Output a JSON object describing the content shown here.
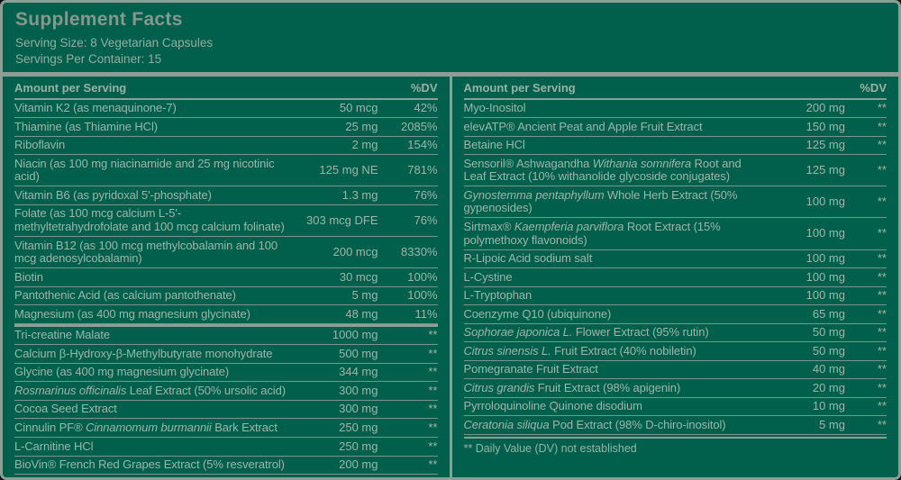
{
  "colors": {
    "panel_background": "#00604b",
    "rule": "#8c9f95",
    "text": "#a0b5aa",
    "title_text": "#86988e"
  },
  "header": {
    "title": "Supplement Facts",
    "serving_size": "Serving Size: 8 Vegetarian Capsules",
    "servings_per_container": "Servings Per Container: 15"
  },
  "columns": [
    {
      "header": {
        "amount_label": "Amount per Serving",
        "dv_label": "%DV"
      },
      "sections": [
        {
          "rows": [
            {
              "name": [
                {
                  "text": "Vitamin K2 (as menaquinone-7)"
                }
              ],
              "amount": "50 mcg",
              "dv": "42%"
            },
            {
              "name": [
                {
                  "text": "Thiamine (as Thiamine HCl)"
                }
              ],
              "amount": "25 mg",
              "dv": "2085%"
            },
            {
              "name": [
                {
                  "text": "Riboflavin"
                }
              ],
              "amount": "2 mg",
              "dv": "154%"
            },
            {
              "name": [
                {
                  "text": "Niacin (as 100 mg niacinamide and 25 mg nicotinic acid)"
                }
              ],
              "amount": "125 mg NE",
              "dv": "781%"
            },
            {
              "name": [
                {
                  "text": "Vitamin B6 (as pyridoxal 5'-phosphate)"
                }
              ],
              "amount": "1.3 mg",
              "dv": "76%"
            },
            {
              "name": [
                {
                  "text": "Folate (as 100 mcg calcium L-5'-methyltetrahydrofolate and 100 mcg calcium folinate)"
                }
              ],
              "amount": "303 mcg DFE",
              "dv": "76%"
            },
            {
              "name": [
                {
                  "text": "Vitamin B12 (as 100 mcg methylcobalamin and 100 mcg adenosylcobalamin)"
                }
              ],
              "amount": "200 mcg",
              "dv": "8330%"
            },
            {
              "name": [
                {
                  "text": "Biotin"
                }
              ],
              "amount": "30 mcg",
              "dv": "100%"
            },
            {
              "name": [
                {
                  "text": "Pantothenic Acid (as calcium pantothenate)"
                }
              ],
              "amount": "5 mg",
              "dv": "100%"
            },
            {
              "name": [
                {
                  "text": "Magnesium (as 400 mg magnesium glycinate)"
                }
              ],
              "amount": "48 mg",
              "dv": "11%"
            }
          ]
        },
        {
          "rows": [
            {
              "name": [
                {
                  "text": "Tri-creatine Malate"
                }
              ],
              "amount": "1000 mg",
              "dv": "**"
            },
            {
              "name": [
                {
                  "text": "Calcium β-Hydroxy-β-Methylbutyrate monohydrate"
                }
              ],
              "amount": "500 mg",
              "dv": "**"
            },
            {
              "name": [
                {
                  "text": "Glycine (as 400 mg magnesium glycinate)"
                }
              ],
              "amount": "344 mg",
              "dv": "**"
            },
            {
              "name": [
                {
                  "text": "Rosmarinus officinalis",
                  "italic": true
                },
                {
                  "text": " Leaf Extract (50% ursolic acid)"
                }
              ],
              "amount": "300 mg",
              "dv": "**"
            },
            {
              "name": [
                {
                  "text": "Cocoa Seed Extract"
                }
              ],
              "amount": "300 mg",
              "dv": "**"
            },
            {
              "name": [
                {
                  "text": "Cinnulin PF® "
                },
                {
                  "text": "Cinnamomum burmannii",
                  "italic": true
                },
                {
                  "text": " Bark Extract"
                }
              ],
              "amount": "250 mg",
              "dv": "**"
            },
            {
              "name": [
                {
                  "text": "L-Carnitine HCl"
                }
              ],
              "amount": "250 mg",
              "dv": "**"
            },
            {
              "name": [
                {
                  "text": "BioVin® French Red Grapes Extract (5% resveratrol)"
                }
              ],
              "amount": "200 mg",
              "dv": "**"
            }
          ]
        }
      ]
    },
    {
      "header": {
        "amount_label": "Amount per Serving",
        "dv_label": "%DV"
      },
      "sections": [
        {
          "rows": [
            {
              "name": [
                {
                  "text": "Myo-Inositol"
                }
              ],
              "amount": "200 mg",
              "dv": "**"
            },
            {
              "name": [
                {
                  "text": "elevATP® Ancient Peat and Apple Fruit Extract"
                }
              ],
              "amount": "150 mg",
              "dv": "**"
            },
            {
              "name": [
                {
                  "text": "Betaine HCl"
                }
              ],
              "amount": "125 mg",
              "dv": "**"
            },
            {
              "name": [
                {
                  "text": "Sensoril® Ashwagandha "
                },
                {
                  "text": "Withania somnifera",
                  "italic": true
                },
                {
                  "text": " Root and Leaf Extract (10% withanolide glycoside conjugates)"
                }
              ],
              "amount": "125 mg",
              "dv": "**"
            },
            {
              "name": [
                {
                  "text": "Gynostemma pentaphyllum",
                  "italic": true
                },
                {
                  "text": " Whole Herb Extract (50% gypenosides)"
                }
              ],
              "amount": "100 mg",
              "dv": "**"
            },
            {
              "name": [
                {
                  "text": "Sirtmax® "
                },
                {
                  "text": "Kaempferia parviflora",
                  "italic": true
                },
                {
                  "text": " Root Extract (15% polymethoxy flavonoids)"
                }
              ],
              "amount": "100 mg",
              "dv": "**"
            },
            {
              "name": [
                {
                  "text": "R-Lipoic Acid sodium salt"
                }
              ],
              "amount": "100 mg",
              "dv": "**"
            },
            {
              "name": [
                {
                  "text": "L-Cystine"
                }
              ],
              "amount": "100 mg",
              "dv": "**"
            },
            {
              "name": [
                {
                  "text": "L-Tryptophan"
                }
              ],
              "amount": "100 mg",
              "dv": "**"
            },
            {
              "name": [
                {
                  "text": "Coenzyme Q10 (ubiquinone)"
                }
              ],
              "amount": "65 mg",
              "dv": "**"
            },
            {
              "name": [
                {
                  "text": "Sophorae japonica L.",
                  "italic": true
                },
                {
                  "text": " Flower Extract (95% rutin)"
                }
              ],
              "amount": "50 mg",
              "dv": "**"
            },
            {
              "name": [
                {
                  "text": "Citrus sinensis L.",
                  "italic": true
                },
                {
                  "text": " Fruit Extract (40% nobiletin)"
                }
              ],
              "amount": "50 mg",
              "dv": "**"
            },
            {
              "name": [
                {
                  "text": "Pomegranate Fruit Extract"
                }
              ],
              "amount": "40 mg",
              "dv": "**"
            },
            {
              "name": [
                {
                  "text": "Citrus grandis",
                  "italic": true
                },
                {
                  "text": " Fruit Extract (98% apigenin)"
                }
              ],
              "amount": "20 mg",
              "dv": "**"
            },
            {
              "name": [
                {
                  "text": "Pyrroloquinoline Quinone disodium"
                }
              ],
              "amount": "10 mg",
              "dv": "**"
            },
            {
              "name": [
                {
                  "text": "Ceratonia siliqua",
                  "italic": true
                },
                {
                  "text": " Pod Extract (98% D-chiro-inositol)"
                }
              ],
              "amount": "5 mg",
              "dv": "**"
            }
          ]
        }
      ],
      "footnote": "** Daily Value (DV) not established"
    }
  ]
}
